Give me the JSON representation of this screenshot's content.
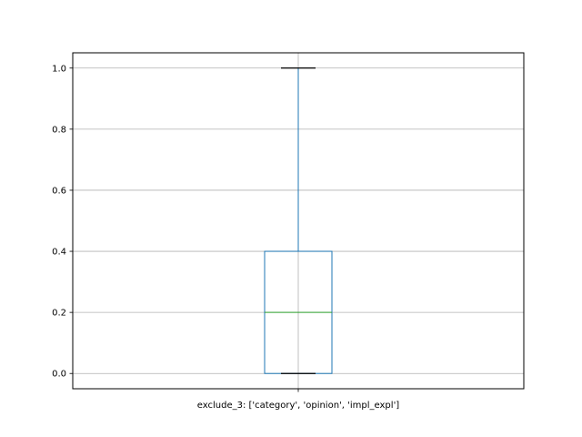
{
  "chart_data": {
    "type": "boxplot",
    "categories": [
      "exclude_3: ['category', 'opinion', 'impl_expl']"
    ],
    "boxes": [
      {
        "whisker_low": 0.0,
        "q1": 0.0,
        "median": 0.2,
        "q3": 0.4,
        "whisker_high": 1.0
      }
    ],
    "ylim": [
      -0.05,
      1.05
    ],
    "yticks": [
      "0.0",
      "0.2",
      "0.4",
      "0.6",
      "0.8",
      "1.0"
    ],
    "grid": true,
    "title": "",
    "xlabel": "",
    "ylabel": "",
    "colors": {
      "box": "#1f77b4",
      "whisker": "#1f77b4",
      "cap": "#000000",
      "median": "#2ca02c",
      "grid": "#b0b0b0"
    }
  }
}
